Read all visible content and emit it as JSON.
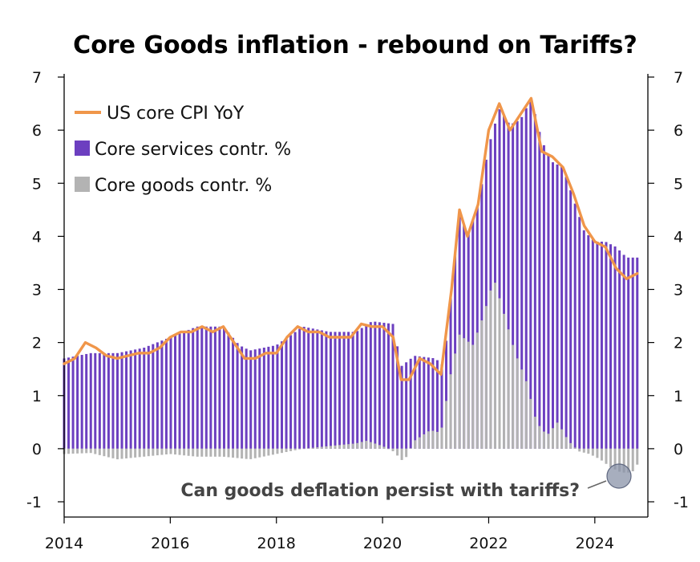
{
  "chart_data": {
    "type": "bar",
    "title": "Core Goods inflation - rebound on Tariffs?",
    "xlabel": "",
    "ylabel": "",
    "x_range": [
      2014,
      2025
    ],
    "ylim": [
      -1.0,
      7.0
    ],
    "x_tick_labels": [
      "2014",
      "2016",
      "2018",
      "2020",
      "2022",
      "2024"
    ],
    "y_tick_labels": [
      "-1",
      "0",
      "1",
      "2",
      "3",
      "4",
      "5",
      "6",
      "7"
    ],
    "legend": {
      "placement": "top-left",
      "items": [
        {
          "label": "US core CPI YoY",
          "kind": "line",
          "color": "#f0964a"
        },
        {
          "label": "Core services contr. %",
          "kind": "bar",
          "color": "#6c3fc0"
        },
        {
          "label": "Core goods contr. %",
          "kind": "bar",
          "color": "#b3b3b3"
        }
      ]
    },
    "annotation": {
      "text": "Can goods deflation persist with tariffs?",
      "target_date": 2024.6
    },
    "colors": {
      "services": "#6c3fc0",
      "goods": "#b3b3b3",
      "cpi": "#f0964a",
      "circle": "#8a93a8"
    },
    "series": [
      {
        "name": "US core CPI YoY",
        "points": [
          [
            2014.0,
            1.6
          ],
          [
            2014.2,
            1.7
          ],
          [
            2014.4,
            2.0
          ],
          [
            2014.6,
            1.9
          ],
          [
            2014.8,
            1.75
          ],
          [
            2015.0,
            1.7
          ],
          [
            2015.2,
            1.75
          ],
          [
            2015.4,
            1.8
          ],
          [
            2015.6,
            1.8
          ],
          [
            2015.8,
            1.9
          ],
          [
            2016.0,
            2.1
          ],
          [
            2016.2,
            2.2
          ],
          [
            2016.4,
            2.2
          ],
          [
            2016.6,
            2.3
          ],
          [
            2016.8,
            2.2
          ],
          [
            2017.0,
            2.3
          ],
          [
            2017.2,
            2.0
          ],
          [
            2017.4,
            1.7
          ],
          [
            2017.6,
            1.7
          ],
          [
            2017.8,
            1.8
          ],
          [
            2018.0,
            1.8
          ],
          [
            2018.2,
            2.1
          ],
          [
            2018.4,
            2.3
          ],
          [
            2018.6,
            2.2
          ],
          [
            2018.8,
            2.2
          ],
          [
            2019.0,
            2.1
          ],
          [
            2019.2,
            2.1
          ],
          [
            2019.4,
            2.1
          ],
          [
            2019.6,
            2.35
          ],
          [
            2019.8,
            2.3
          ],
          [
            2020.0,
            2.3
          ],
          [
            2020.2,
            2.1
          ],
          [
            2020.35,
            1.3
          ],
          [
            2020.5,
            1.3
          ],
          [
            2020.7,
            1.7
          ],
          [
            2020.9,
            1.6
          ],
          [
            2021.1,
            1.4
          ],
          [
            2021.3,
            3.0
          ],
          [
            2021.45,
            4.5
          ],
          [
            2021.6,
            4.0
          ],
          [
            2021.8,
            4.6
          ],
          [
            2022.0,
            6.0
          ],
          [
            2022.2,
            6.5
          ],
          [
            2022.4,
            6.0
          ],
          [
            2022.6,
            6.3
          ],
          [
            2022.8,
            6.6
          ],
          [
            2023.0,
            5.6
          ],
          [
            2023.2,
            5.5
          ],
          [
            2023.4,
            5.3
          ],
          [
            2023.6,
            4.8
          ],
          [
            2023.8,
            4.2
          ],
          [
            2024.0,
            3.9
          ],
          [
            2024.2,
            3.8
          ],
          [
            2024.4,
            3.4
          ],
          [
            2024.6,
            3.2
          ],
          [
            2024.8,
            3.3
          ]
        ]
      },
      {
        "name": "Core services contr. %",
        "points": [
          [
            2014.0,
            1.7
          ],
          [
            2014.5,
            1.8
          ],
          [
            2015.0,
            1.8
          ],
          [
            2015.5,
            1.9
          ],
          [
            2016.0,
            2.1
          ],
          [
            2016.5,
            2.3
          ],
          [
            2017.0,
            2.3
          ],
          [
            2017.3,
            1.95
          ],
          [
            2017.5,
            1.85
          ],
          [
            2018.0,
            1.95
          ],
          [
            2018.5,
            2.3
          ],
          [
            2019.0,
            2.2
          ],
          [
            2019.5,
            2.2
          ],
          [
            2019.8,
            2.4
          ],
          [
            2020.2,
            2.35
          ],
          [
            2020.35,
            1.55
          ],
          [
            2020.6,
            1.75
          ],
          [
            2021.0,
            1.7
          ],
          [
            2021.15,
            1.55
          ],
          [
            2021.3,
            3.0
          ],
          [
            2021.45,
            4.5
          ],
          [
            2021.6,
            4.0
          ],
          [
            2021.8,
            4.6
          ],
          [
            2022.0,
            5.7
          ],
          [
            2022.2,
            6.4
          ],
          [
            2022.4,
            6.1
          ],
          [
            2022.6,
            6.2
          ],
          [
            2022.8,
            6.6
          ],
          [
            2023.0,
            5.8
          ],
          [
            2023.2,
            5.4
          ],
          [
            2023.4,
            5.3
          ],
          [
            2023.6,
            4.7
          ],
          [
            2023.8,
            4.1
          ],
          [
            2024.0,
            3.9
          ],
          [
            2024.2,
            3.9
          ],
          [
            2024.4,
            3.8
          ],
          [
            2024.6,
            3.6
          ],
          [
            2024.8,
            3.6
          ]
        ]
      },
      {
        "name": "Core goods contr. %",
        "points": [
          [
            2014.0,
            -0.1
          ],
          [
            2014.5,
            -0.08
          ],
          [
            2015.0,
            -0.2
          ],
          [
            2015.5,
            -0.15
          ],
          [
            2016.0,
            -0.1
          ],
          [
            2016.5,
            -0.15
          ],
          [
            2017.0,
            -0.15
          ],
          [
            2017.5,
            -0.2
          ],
          [
            2018.0,
            -0.1
          ],
          [
            2018.5,
            0.0
          ],
          [
            2019.0,
            0.05
          ],
          [
            2019.5,
            0.1
          ],
          [
            2019.7,
            0.15
          ],
          [
            2020.0,
            0.05
          ],
          [
            2020.2,
            -0.05
          ],
          [
            2020.4,
            -0.25
          ],
          [
            2020.6,
            0.15
          ],
          [
            2020.9,
            0.35
          ],
          [
            2021.1,
            0.3
          ],
          [
            2021.3,
            1.5
          ],
          [
            2021.45,
            2.15
          ],
          [
            2021.7,
            1.95
          ],
          [
            2021.9,
            2.5
          ],
          [
            2022.1,
            3.2
          ],
          [
            2022.3,
            2.5
          ],
          [
            2022.5,
            1.8
          ],
          [
            2022.7,
            1.3
          ],
          [
            2022.9,
            0.5
          ],
          [
            2023.1,
            0.25
          ],
          [
            2023.3,
            0.5
          ],
          [
            2023.5,
            0.15
          ],
          [
            2023.7,
            -0.05
          ],
          [
            2023.9,
            -0.1
          ],
          [
            2024.1,
            -0.2
          ],
          [
            2024.3,
            -0.35
          ],
          [
            2024.5,
            -0.45
          ],
          [
            2024.7,
            -0.45
          ],
          [
            2024.8,
            -0.3
          ]
        ]
      }
    ]
  }
}
